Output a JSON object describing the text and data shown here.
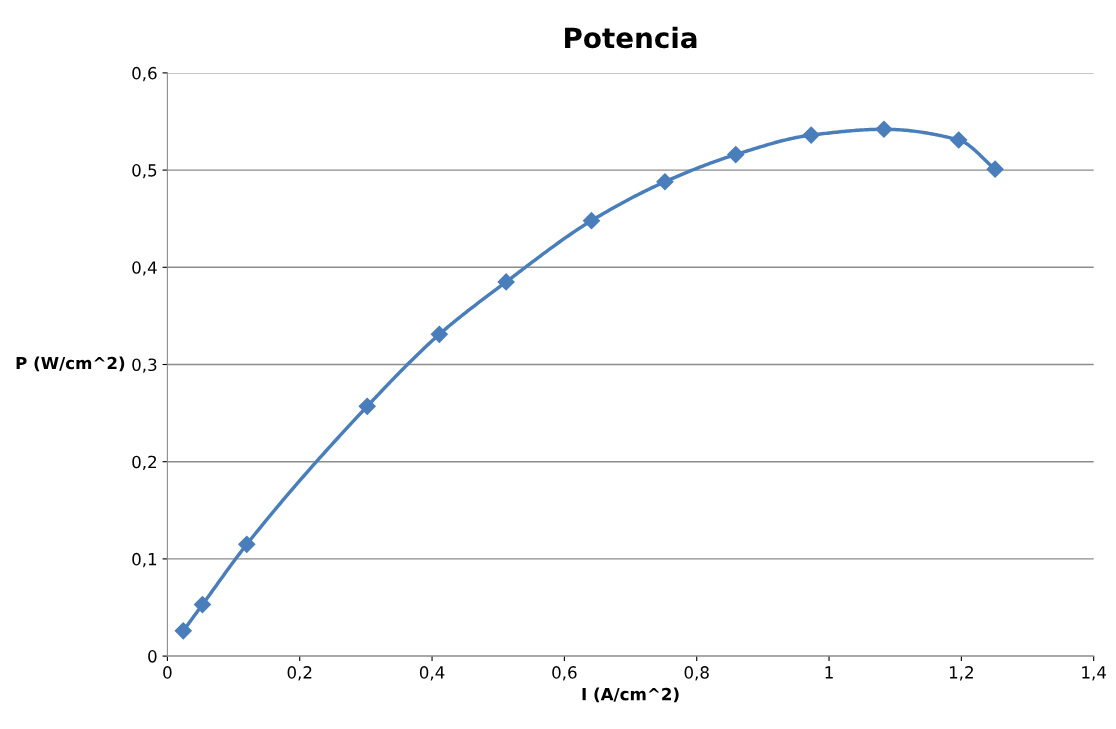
{
  "chart_data": {
    "type": "line",
    "title": "Potencia",
    "xlabel": "I (A/cm^2)",
    "ylabel": "P (W/cm^2)",
    "x": [
      0.024,
      0.053,
      0.12,
      0.302,
      0.411,
      0.512,
      0.641,
      0.752,
      0.859,
      0.973,
      1.083,
      1.196,
      1.251
    ],
    "series": [
      {
        "color": "#4a7ebb",
        "values": [
          0.026,
          0.053,
          0.115,
          0.257,
          0.331,
          0.385,
          0.448,
          0.488,
          0.516,
          0.536,
          0.542,
          0.531,
          0.501
        ]
      }
    ],
    "xlim": [
      0,
      1.4
    ],
    "ylim": [
      0,
      0.6
    ],
    "xticks": [
      0,
      {
        "value": 0.2,
        "label": "0,2"
      },
      {
        "value": 0.4,
        "label": "0,4"
      },
      {
        "value": 0.6,
        "label": "0,6"
      },
      {
        "value": 0.8,
        "label": "0,8"
      },
      1,
      {
        "value": 1.2,
        "label": "1,2"
      },
      {
        "value": 1.4,
        "label": "1,4"
      }
    ],
    "yticks": [
      0,
      {
        "value": 0.1,
        "label": "0,1"
      },
      {
        "value": 0.2,
        "label": "0,2"
      },
      {
        "value": 0.3,
        "label": "0,3"
      },
      {
        "value": 0.4,
        "label": "0,4"
      },
      {
        "value": 0.5,
        "label": "0,5"
      },
      {
        "value": 0.6,
        "label": "0,6"
      }
    ],
    "grid": "y",
    "marker": "diamond",
    "line_style": "solid"
  }
}
